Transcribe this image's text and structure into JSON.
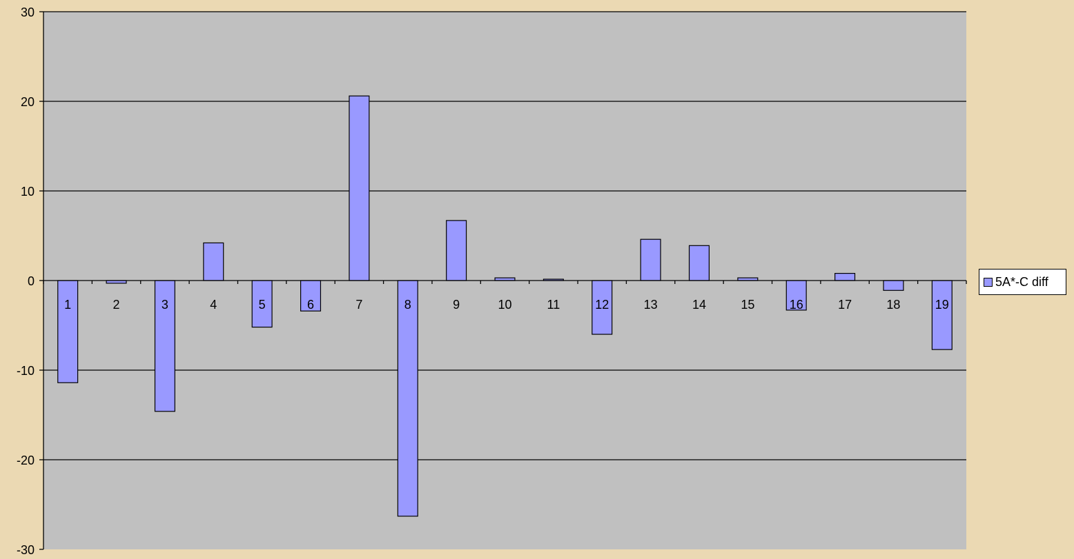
{
  "chart_data": {
    "type": "bar",
    "categories": [
      "1",
      "2",
      "3",
      "4",
      "5",
      "6",
      "7",
      "8",
      "9",
      "10",
      "11",
      "12",
      "13",
      "14",
      "15",
      "16",
      "17",
      "18",
      "19"
    ],
    "series": [
      {
        "name": "5A*-C diff",
        "color": "#9999FF",
        "values": [
          -11.4,
          -0.3,
          -14.6,
          4.2,
          -5.2,
          -3.4,
          20.6,
          -26.3,
          6.7,
          0.3,
          0.15,
          -6.0,
          4.6,
          3.9,
          0.3,
          -3.3,
          0.8,
          -1.1,
          -7.7
        ]
      }
    ],
    "ylim": [
      -30,
      30
    ],
    "yticks": [
      "-30",
      "-20",
      "-10",
      "0",
      "10",
      "20",
      "30"
    ],
    "ytick_values": [
      -30,
      -20,
      -10,
      0,
      10,
      20,
      30
    ],
    "grid": true,
    "legend_position": "right",
    "colors": {
      "page_background": "#EBD9B3",
      "plot_background": "#C0C0C0",
      "bar_fill": "#9999FF",
      "gridline": "#000000"
    }
  },
  "legend": {
    "label": "5A*-C diff"
  }
}
